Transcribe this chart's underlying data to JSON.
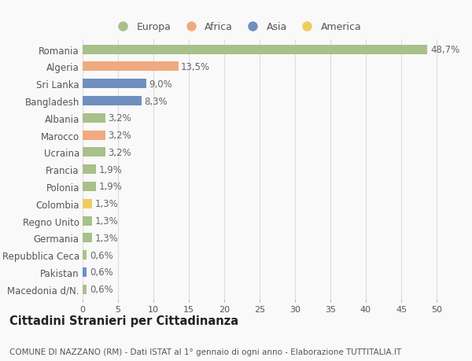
{
  "countries": [
    "Romania",
    "Algeria",
    "Sri Lanka",
    "Bangladesh",
    "Albania",
    "Marocco",
    "Ucraina",
    "Francia",
    "Polonia",
    "Colombia",
    "Regno Unito",
    "Germania",
    "Repubblica Ceca",
    "Pakistan",
    "Macedonia d/N."
  ],
  "values": [
    48.7,
    13.5,
    9.0,
    8.3,
    3.2,
    3.2,
    3.2,
    1.9,
    1.9,
    1.3,
    1.3,
    1.3,
    0.6,
    0.6,
    0.6
  ],
  "labels": [
    "48,7%",
    "13,5%",
    "9,0%",
    "8,3%",
    "3,2%",
    "3,2%",
    "3,2%",
    "1,9%",
    "1,9%",
    "1,3%",
    "1,3%",
    "1,3%",
    "0,6%",
    "0,6%",
    "0,6%"
  ],
  "regions": [
    "Europa",
    "Africa",
    "Asia",
    "Asia",
    "Europa",
    "Africa",
    "Europa",
    "Europa",
    "Europa",
    "America",
    "Europa",
    "Europa",
    "Europa",
    "Asia",
    "Europa"
  ],
  "colors": {
    "Europa": "#a8c08a",
    "Africa": "#f0aa80",
    "Asia": "#6e8fc0",
    "America": "#f0cc60"
  },
  "legend_order": [
    "Europa",
    "Africa",
    "Asia",
    "America"
  ],
  "xlim": [
    0,
    52
  ],
  "xticks": [
    0,
    5,
    10,
    15,
    20,
    25,
    30,
    35,
    40,
    45,
    50
  ],
  "title": "Cittadini Stranieri per Cittadinanza",
  "subtitle": "COMUNE DI NAZZANO (RM) - Dati ISTAT al 1° gennaio di ogni anno - Elaborazione TUTTITALIA.IT",
  "bg_color": "#f9f9f9",
  "grid_color": "#dddddd",
  "bar_height": 0.55,
  "label_fontsize": 8.5,
  "ytick_fontsize": 8.5,
  "xtick_fontsize": 8,
  "title_fontsize": 10.5,
  "subtitle_fontsize": 7.5
}
